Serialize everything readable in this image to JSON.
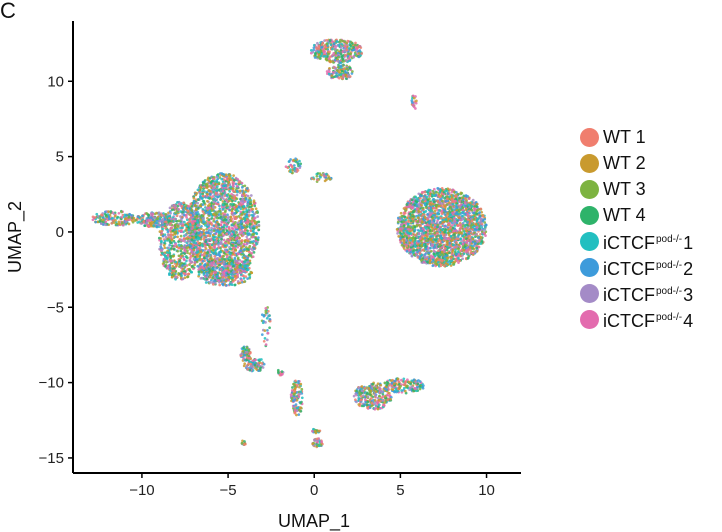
{
  "panel_label": "C",
  "chart_data": {
    "type": "scatter",
    "xlabel": "UMAP_1",
    "ylabel": "UMAP_2",
    "xlim": [
      -14,
      12
    ],
    "ylim": [
      -16,
      14
    ],
    "xticks": [
      -10,
      -5,
      0,
      5,
      10
    ],
    "yticks": [
      -15,
      -10,
      -5,
      0,
      5,
      10
    ],
    "grid": false,
    "legend_position": "right",
    "series": [
      {
        "name": "WT 1",
        "color": "#F07E6E"
      },
      {
        "name": "WT 2",
        "color": "#C99A2E"
      },
      {
        "name": "WT 3",
        "color": "#7DB340"
      },
      {
        "name": "WT 4",
        "color": "#2EB36A"
      },
      {
        "name": "iCTCF",
        "sup": "pod-/-",
        "num": "1",
        "color": "#22BFC0"
      },
      {
        "name": "iCTCF",
        "sup": "pod-/-",
        "num": "2",
        "color": "#3D9BDB"
      },
      {
        "name": "iCTCF",
        "sup": "pod-/-",
        "num": "3",
        "color": "#A48BC7"
      },
      {
        "name": "iCTCF",
        "sup": "pod-/-",
        "num": "4",
        "color": "#E36BAE"
      }
    ],
    "clusters": [
      {
        "cx": -5.3,
        "cy": 0.3,
        "rx": 2.1,
        "ry": 3.6,
        "n": 1800
      },
      {
        "cx": -7.8,
        "cy": -0.6,
        "rx": 1.2,
        "ry": 2.6,
        "n": 700
      },
      {
        "cx": -9.3,
        "cy": 0.8,
        "rx": 1.1,
        "ry": 0.5,
        "n": 180
      },
      {
        "cx": -11.6,
        "cy": 0.9,
        "rx": 1.3,
        "ry": 0.5,
        "n": 160
      },
      {
        "cx": -5.2,
        "cy": -2.7,
        "rx": 1.6,
        "ry": 0.9,
        "n": 300
      },
      {
        "cx": 7.4,
        "cy": 0.3,
        "rx": 2.6,
        "ry": 2.6,
        "n": 2200
      },
      {
        "cx": 1.3,
        "cy": 12.0,
        "rx": 1.5,
        "ry": 0.8,
        "n": 350
      },
      {
        "cx": 1.5,
        "cy": 10.6,
        "rx": 0.8,
        "ry": 0.5,
        "n": 120
      },
      {
        "cx": -4.0,
        "cy": -8.1,
        "rx": 0.3,
        "ry": 0.5,
        "n": 60
      },
      {
        "cx": -3.5,
        "cy": -8.8,
        "rx": 0.6,
        "ry": 0.5,
        "n": 90
      },
      {
        "cx": -1.0,
        "cy": -11.0,
        "rx": 0.35,
        "ry": 1.2,
        "n": 110
      },
      {
        "cx": 3.4,
        "cy": -10.9,
        "rx": 1.1,
        "ry": 0.9,
        "n": 260
      },
      {
        "cx": 5.2,
        "cy": -10.2,
        "rx": 1.2,
        "ry": 0.5,
        "n": 150
      },
      {
        "cx": 0.2,
        "cy": -14.0,
        "rx": 0.3,
        "ry": 0.3,
        "n": 40
      },
      {
        "cx": 0.1,
        "cy": -13.2,
        "rx": 0.25,
        "ry": 0.15,
        "n": 20
      },
      {
        "cx": -4.1,
        "cy": -14.0,
        "rx": 0.15,
        "ry": 0.15,
        "n": 10
      },
      {
        "cx": -1.2,
        "cy": 4.4,
        "rx": 0.45,
        "ry": 0.5,
        "n": 45
      },
      {
        "cx": 0.4,
        "cy": 3.6,
        "rx": 0.6,
        "ry": 0.3,
        "n": 40
      },
      {
        "cx": 5.8,
        "cy": 8.6,
        "rx": 0.15,
        "ry": 0.5,
        "n": 18
      },
      {
        "cx": -2.8,
        "cy": -6.2,
        "rx": 0.25,
        "ry": 1.4,
        "n": 35
      },
      {
        "cx": -2.0,
        "cy": -9.3,
        "rx": 0.2,
        "ry": 0.25,
        "n": 12
      }
    ]
  }
}
